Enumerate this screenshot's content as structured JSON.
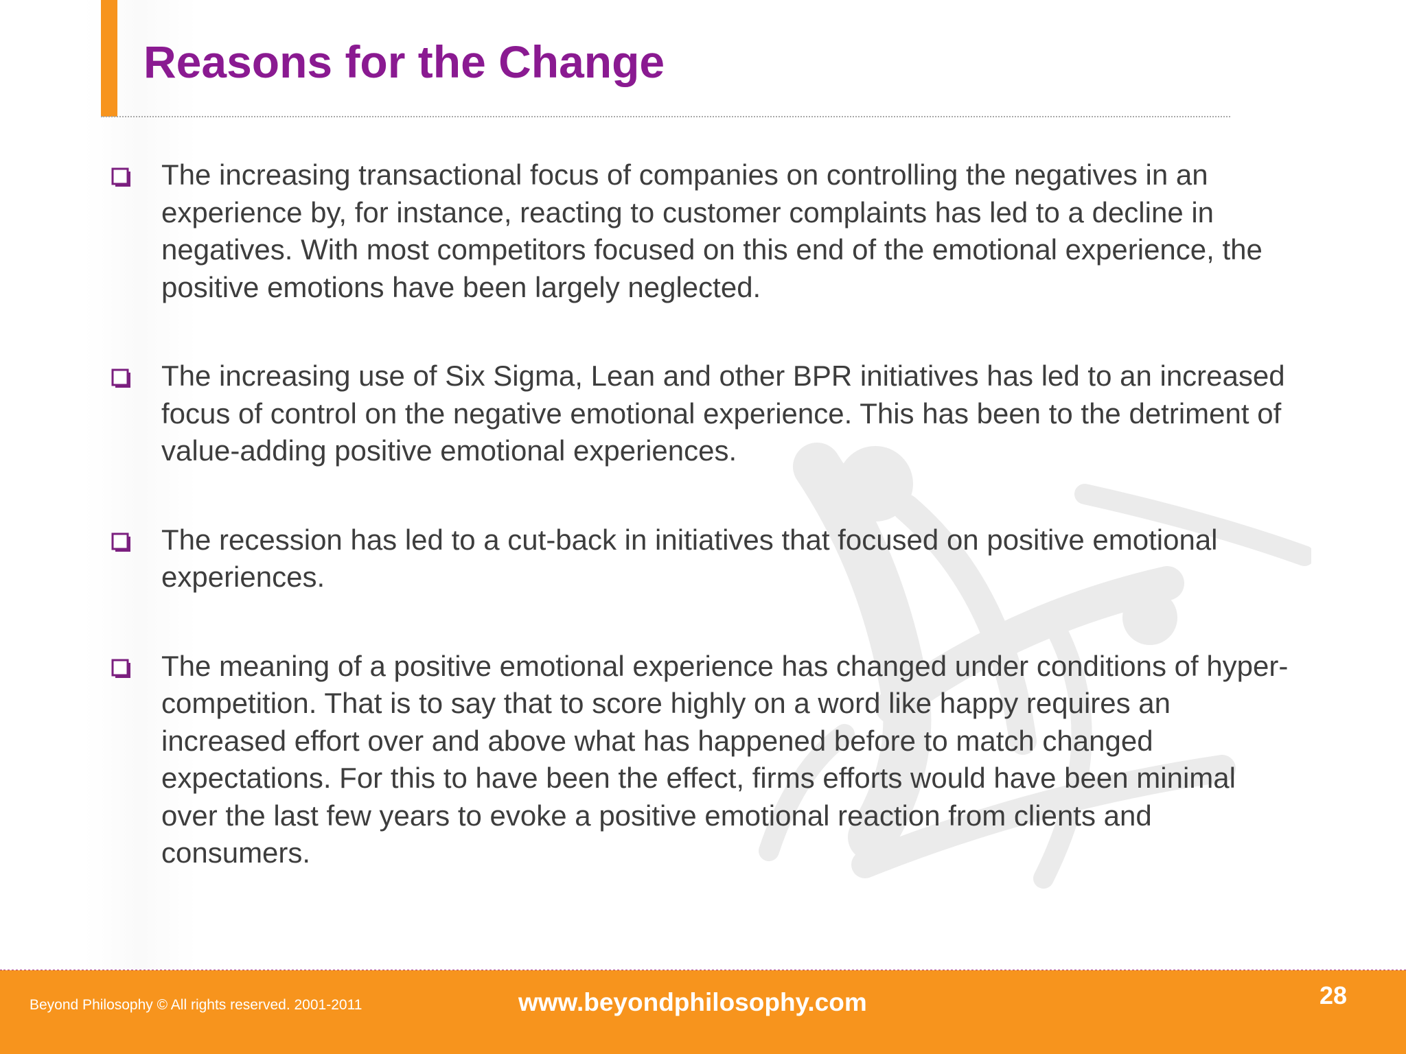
{
  "slide": {
    "title": "Reasons for the Change",
    "bullets": [
      {
        "text": "The increasing transactional focus of companies on controlling the negatives in an experience by, for instance, reacting to customer complaints has led to a decline in negatives. With most competitors focused on this end of the emotional experience, the positive emotions have been largely neglected."
      },
      {
        "text": "The increasing use of Six Sigma, Lean and other BPR initiatives has led to an increased focus of control on the negative emotional experience.  This has been to the detriment of value-adding positive emotional experiences."
      },
      {
        "text": "The recession has led to a cut-back in initiatives that focused on positive emotional experiences."
      },
      {
        "text": "The meaning of a positive emotional experience has changed under conditions of hyper-competition.  That is to say that to score highly on a word like happy requires an increased effort over and above what has happened before to match changed expectations. For this to have been the effect, firms efforts would have been minimal over the last few years to evoke a positive emotional reaction from clients and consumers."
      }
    ]
  },
  "footer": {
    "copyright": "Beyond Philosophy © All rights reserved. 2001-2011",
    "website": "www.beyondphilosophy.com",
    "page_number": "28"
  },
  "colors": {
    "title": "#8a1a91",
    "accent_orange": "#f7941d",
    "checkbox_purple": "#7b1f7f",
    "body_text": "#3d3d3d"
  },
  "icons": {
    "bullet": "checkbox-icon",
    "watermark": "figure-logo-watermark"
  }
}
